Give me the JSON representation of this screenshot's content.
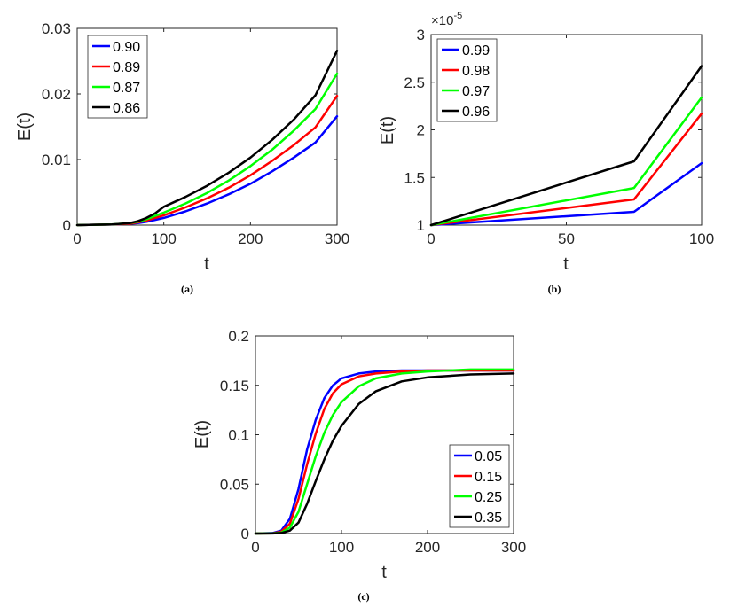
{
  "chart_data": [
    {
      "id": "a",
      "type": "line",
      "caption": "(a)",
      "xlabel": "t",
      "ylabel": "E(t)",
      "xlim": [
        0,
        300
      ],
      "ylim": [
        0,
        0.03
      ],
      "xticks": [
        0,
        100,
        200,
        300
      ],
      "xtick_labels": [
        "0",
        "100",
        "200",
        "300"
      ],
      "yticks": [
        0,
        0.01,
        0.02,
        0.03
      ],
      "ytick_labels": [
        "0",
        "0.01",
        "0.02",
        "0.03"
      ],
      "legend_position": "top-left",
      "series": [
        {
          "name": "0.90",
          "color": "#0000ff",
          "x": [
            0,
            40,
            60,
            70,
            80,
            90,
            100,
            125,
            150,
            175,
            200,
            225,
            250,
            275,
            300
          ],
          "y": [
            0,
            0.0001,
            0.0002,
            0.0003,
            0.0005,
            0.0008,
            0.0011,
            0.0021,
            0.0033,
            0.0047,
            0.0063,
            0.0082,
            0.0103,
            0.0126,
            0.0166
          ]
        },
        {
          "name": "0.89",
          "color": "#ff0000",
          "x": [
            0,
            40,
            60,
            70,
            80,
            90,
            100,
            125,
            150,
            175,
            200,
            225,
            250,
            275,
            300
          ],
          "y": [
            0,
            0.0001,
            0.0002,
            0.0004,
            0.0007,
            0.0011,
            0.0015,
            0.0027,
            0.0041,
            0.0057,
            0.0076,
            0.0098,
            0.0122,
            0.0149,
            0.0197
          ]
        },
        {
          "name": "0.87",
          "color": "#00ff00",
          "x": [
            0,
            40,
            60,
            70,
            80,
            90,
            100,
            125,
            150,
            175,
            200,
            225,
            250,
            275,
            300
          ],
          "y": [
            0,
            0.0001,
            0.0003,
            0.0005,
            0.0009,
            0.0014,
            0.0019,
            0.0033,
            0.0049,
            0.0068,
            0.009,
            0.0115,
            0.0144,
            0.0177,
            0.0231
          ]
        },
        {
          "name": "0.86",
          "color": "#000000",
          "x": [
            0,
            40,
            60,
            70,
            80,
            90,
            100,
            125,
            150,
            175,
            200,
            225,
            250,
            275,
            300
          ],
          "y": [
            0,
            0.0001,
            0.0003,
            0.0006,
            0.0011,
            0.0018,
            0.0028,
            0.0043,
            0.006,
            0.008,
            0.0103,
            0.013,
            0.0161,
            0.0198,
            0.0266
          ]
        }
      ]
    },
    {
      "id": "b",
      "type": "line",
      "caption": "(b)",
      "xlabel": "t",
      "ylabel": "E(t)",
      "xlim": [
        0,
        100
      ],
      "ylim": [
        1,
        3
      ],
      "xticks": [
        0,
        50,
        100
      ],
      "xtick_labels": [
        "0",
        "50",
        "100"
      ],
      "yticks": [
        1,
        1.5,
        2,
        2.5,
        3
      ],
      "ytick_labels": [
        "1",
        "1.5",
        "2",
        "2.5",
        "3"
      ],
      "y_multiplier_base": "×10",
      "y_multiplier_exponent": "-5",
      "legend_position": "top-left",
      "series": [
        {
          "name": "0.99",
          "color": "#0000ff",
          "x": [
            0,
            75,
            100
          ],
          "y": [
            1.0,
            1.14,
            1.65
          ]
        },
        {
          "name": "0.98",
          "color": "#ff0000",
          "x": [
            0,
            75,
            100
          ],
          "y": [
            1.0,
            1.27,
            2.17
          ]
        },
        {
          "name": "0.97",
          "color": "#00ff00",
          "x": [
            0,
            75,
            100
          ],
          "y": [
            1.0,
            1.39,
            2.34
          ]
        },
        {
          "name": "0.96",
          "color": "#000000",
          "x": [
            0,
            75,
            100
          ],
          "y": [
            1.0,
            1.67,
            2.67
          ]
        }
      ]
    },
    {
      "id": "c",
      "type": "line",
      "caption": "(c)",
      "xlabel": "t",
      "ylabel": "E(t)",
      "xlim": [
        0,
        300
      ],
      "ylim": [
        0,
        0.2
      ],
      "xticks": [
        0,
        100,
        200,
        300
      ],
      "xtick_labels": [
        "0",
        "100",
        "200",
        "300"
      ],
      "yticks": [
        0,
        0.05,
        0.1,
        0.15,
        0.2
      ],
      "ytick_labels": [
        "0",
        "0.05",
        "0.1",
        "0.15",
        "0.2"
      ],
      "legend_position": "bottom-right",
      "series": [
        {
          "name": "0.05",
          "color": "#0000ff",
          "x": [
            0,
            20,
            30,
            40,
            50,
            60,
            70,
            80,
            90,
            100,
            120,
            140,
            170,
            200,
            250,
            300
          ],
          "y": [
            0,
            0.0005,
            0.003,
            0.015,
            0.045,
            0.085,
            0.115,
            0.137,
            0.15,
            0.157,
            0.162,
            0.164,
            0.165,
            0.165,
            0.165,
            0.165
          ]
        },
        {
          "name": "0.15",
          "color": "#ff0000",
          "x": [
            0,
            20,
            30,
            40,
            50,
            60,
            70,
            80,
            90,
            100,
            120,
            140,
            170,
            200,
            250,
            300
          ],
          "y": [
            0,
            0.0003,
            0.002,
            0.01,
            0.035,
            0.07,
            0.101,
            0.126,
            0.142,
            0.151,
            0.159,
            0.162,
            0.164,
            0.165,
            0.165,
            0.165
          ]
        },
        {
          "name": "0.25",
          "color": "#00ff00",
          "x": [
            0,
            20,
            30,
            40,
            50,
            60,
            70,
            80,
            90,
            100,
            120,
            140,
            170,
            200,
            250,
            300
          ],
          "y": [
            0,
            0.0002,
            0.001,
            0.006,
            0.022,
            0.05,
            0.078,
            0.102,
            0.12,
            0.133,
            0.149,
            0.157,
            0.162,
            0.164,
            0.166,
            0.166
          ]
        },
        {
          "name": "0.35",
          "color": "#000000",
          "x": [
            0,
            20,
            30,
            40,
            50,
            60,
            70,
            80,
            90,
            100,
            120,
            140,
            170,
            200,
            250,
            300
          ],
          "y": [
            0,
            0.0001,
            0.0005,
            0.003,
            0.011,
            0.03,
            0.053,
            0.075,
            0.094,
            0.109,
            0.131,
            0.144,
            0.154,
            0.158,
            0.161,
            0.162
          ]
        }
      ]
    }
  ]
}
